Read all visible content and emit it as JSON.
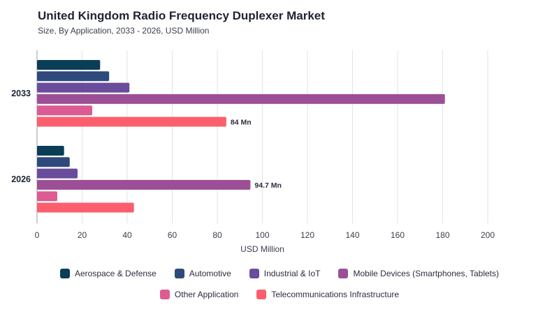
{
  "chart_data": {
    "type": "bar",
    "orientation": "horizontal",
    "title": "United Kingdom Radio Frequency Duplexer Market",
    "subtitle": "Size, By Application, 2033 - 2026, USD Million",
    "xlabel": "USD Million",
    "xlim": [
      0,
      200
    ],
    "xticks": [
      "0",
      "20",
      "40",
      "60",
      "80",
      "100",
      "120",
      "140",
      "160",
      "180",
      "200"
    ],
    "grid": true,
    "legend_position": "bottom",
    "categories": [
      "2033",
      "2026"
    ],
    "series": [
      {
        "name": "Aerospace & Defense",
        "color": "#0b3d57",
        "values": [
          28,
          12
        ]
      },
      {
        "name": "Automotive",
        "color": "#2e4a7d",
        "values": [
          32,
          14.5
        ]
      },
      {
        "name": "Industrial & IoT",
        "color": "#6a4c9c",
        "values": [
          41,
          18
        ]
      },
      {
        "name": "Mobile Devices (Smartphones, Tablets)",
        "color": "#9c4f96",
        "values": [
          181,
          94.7
        ]
      },
      {
        "name": "Other Application",
        "color": "#dc5b92",
        "values": [
          24.5,
          9
        ]
      },
      {
        "name": "Telecommunications Infrastructure",
        "color": "#fb5f6e",
        "values": [
          84,
          43
        ]
      }
    ],
    "data_labels": [
      {
        "category": "2033",
        "series": "Telecommunications Infrastructure",
        "text": "84 Mn"
      },
      {
        "category": "2026",
        "series": "Mobile Devices (Smartphones, Tablets)",
        "text": "94.7 Mn"
      }
    ]
  }
}
